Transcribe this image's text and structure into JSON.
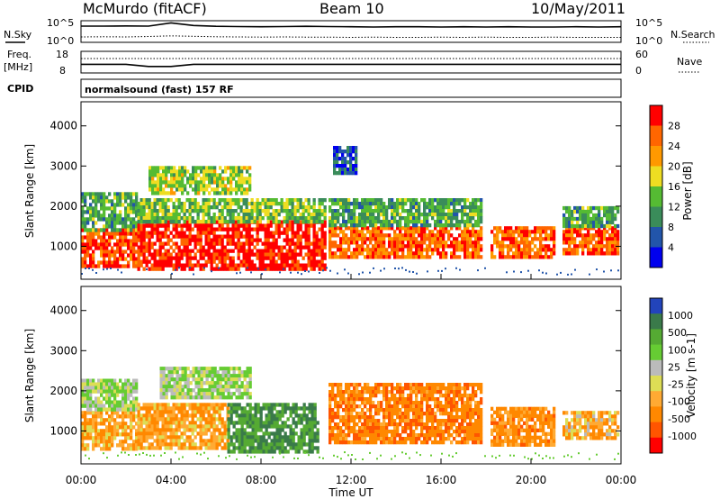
{
  "header": {
    "station": "McMurdo (fitACF)",
    "beam": "Beam 10",
    "date": "10/May/2011"
  },
  "strip_labels": {
    "nsky": "N.Sky",
    "nsearch": "N.Search",
    "freq": "Freq.",
    "freq_unit": "[MHz]",
    "nave": "Nave",
    "cpid": "CPID",
    "cpid_value": "normalsound (fast) 157 RF"
  },
  "strip_ticks": {
    "noise_left": [
      "10^5",
      "10^0"
    ],
    "noise_right": [
      "10^5",
      "10^0"
    ],
    "freq_left": [
      "18",
      "8"
    ],
    "nave_right": [
      "60",
      "0"
    ]
  },
  "colors": {
    "power": [
      "#0000ee",
      "#2255aa",
      "#3a8c5a",
      "#55bb33",
      "#eedd22",
      "#ff9900",
      "#ff6600",
      "#ff0000"
    ],
    "velocity": [
      "#2244bb",
      "#3a7a4a",
      "#55aa33",
      "#66cc33",
      "#bbbbbb",
      "#dddd55",
      "#ffaa33",
      "#ff8800",
      "#ff5500",
      "#ff0000"
    ]
  },
  "chart_data": [
    {
      "type": "heatmap",
      "panel": "power",
      "ylabel": "Slant Range [km]",
      "yticks": [
        "1000",
        "2000",
        "3000",
        "4000"
      ],
      "ylim": [
        180,
        4600
      ],
      "xlim": [
        "00:00",
        "24:00"
      ],
      "colorbar_label": "Power [dB]",
      "colorbar_ticks": [
        "4",
        "8",
        "12",
        "16",
        "20",
        "24",
        "28"
      ],
      "colorbar_range": [
        0,
        32
      ],
      "segments": [
        {
          "t0": 0.0,
          "t1": 2.5,
          "lo": 550,
          "hi": 1450,
          "v": 28
        },
        {
          "t0": 0.0,
          "t1": 2.5,
          "lo": 1450,
          "hi": 2350,
          "v": 12
        },
        {
          "t0": 2.5,
          "t1": 10.8,
          "lo": 450,
          "hi": 1650,
          "v": 30
        },
        {
          "t0": 2.5,
          "t1": 10.8,
          "lo": 1650,
          "hi": 2200,
          "v": 14
        },
        {
          "t0": 3.0,
          "t1": 7.5,
          "lo": 2300,
          "hi": 3000,
          "v": 16
        },
        {
          "t0": 11.0,
          "t1": 17.8,
          "lo": 750,
          "hi": 1500,
          "v": 26
        },
        {
          "t0": 11.0,
          "t1": 17.8,
          "lo": 1500,
          "hi": 2200,
          "v": 12
        },
        {
          "t0": 18.2,
          "t1": 21.0,
          "lo": 700,
          "hi": 1500,
          "v": 26
        },
        {
          "t0": 21.4,
          "t1": 23.9,
          "lo": 800,
          "hi": 1500,
          "v": 26
        },
        {
          "t0": 21.4,
          "t1": 23.9,
          "lo": 1500,
          "hi": 2000,
          "v": 12
        },
        {
          "t0": 11.2,
          "t1": 12.2,
          "lo": 2800,
          "hi": 3500,
          "v": 6
        }
      ]
    },
    {
      "type": "heatmap",
      "panel": "velocity",
      "ylabel": "Slant Range [km]",
      "yticks": [
        "1000",
        "2000",
        "3000",
        "4000"
      ],
      "ylim": [
        180,
        4600
      ],
      "xlim": [
        "00:00",
        "24:00"
      ],
      "xticks": [
        "00:00",
        "04:00",
        "08:00",
        "12:00",
        "16:00",
        "20:00",
        "00:00"
      ],
      "xlabel": "Time UT",
      "colorbar_label": "Velocity [m s-1]",
      "colorbar_ticks": [
        "1000",
        "500",
        "100",
        "25",
        "-25",
        "-100",
        "-500",
        "-1000"
      ],
      "segments": [
        {
          "t0": 0.0,
          "t1": 2.5,
          "lo": 600,
          "hi": 1500,
          "v": -100
        },
        {
          "t0": 0.0,
          "t1": 2.5,
          "lo": 1500,
          "hi": 2300,
          "v": 100
        },
        {
          "t0": 2.5,
          "t1": 6.5,
          "lo": 600,
          "hi": 1700,
          "v": -100
        },
        {
          "t0": 6.5,
          "t1": 10.5,
          "lo": 500,
          "hi": 1700,
          "v": 500
        },
        {
          "t0": 3.5,
          "t1": 7.5,
          "lo": 1800,
          "hi": 2600,
          "v": 100
        },
        {
          "t0": 11.0,
          "t1": 17.8,
          "lo": 700,
          "hi": 2200,
          "v": -200
        },
        {
          "t0": 18.2,
          "t1": 21.0,
          "lo": 700,
          "hi": 1600,
          "v": -150
        },
        {
          "t0": 21.4,
          "t1": 23.9,
          "lo": 800,
          "hi": 1500,
          "v": -60
        }
      ]
    }
  ],
  "strip_data": {
    "noise_sky": [
      0.75,
      0.75,
      0.76,
      0.75,
      0.9,
      0.78,
      0.74,
      0.73,
      0.72,
      0.73,
      0.74,
      0.73,
      0.72,
      0.71,
      0.72,
      0.72,
      0.71,
      0.72,
      0.71,
      0.72,
      0.71,
      0.71,
      0.72,
      0.71,
      0.72
    ],
    "noise_search": [
      0.25,
      0.26,
      0.25,
      0.27,
      0.3,
      0.28,
      0.26,
      0.25,
      0.24,
      0.25,
      0.24,
      0.24,
      0.23,
      0.24,
      0.23,
      0.23,
      0.24,
      0.23,
      0.24,
      0.23,
      0.23,
      0.24,
      0.23,
      0.23,
      0.23
    ],
    "freq_mhz": [
      12,
      12,
      12,
      11,
      11,
      12,
      12,
      12,
      12,
      12,
      12,
      12,
      12,
      12,
      12,
      12,
      12,
      12,
      12,
      12,
      12,
      12,
      12,
      12,
      12
    ],
    "nave": [
      40,
      40,
      40,
      40,
      40,
      40,
      40,
      40,
      40,
      40,
      40,
      40,
      40,
      40,
      40,
      40,
      40,
      40,
      40,
      40,
      40,
      40,
      40,
      40,
      40
    ]
  }
}
